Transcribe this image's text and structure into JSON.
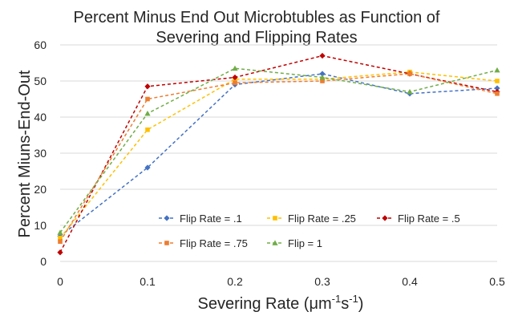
{
  "chart_data": {
    "type": "line",
    "title_lines": [
      "Percent Minus End Out Microbtubles as Function of",
      "Severing and Flipping Rates"
    ],
    "xlabel_prefix": "Severing Rate (",
    "xlabel_unit_mu": "μm",
    "xlabel_sup1": "-1",
    "xlabel_unit_s": "s",
    "xlabel_sup2": "-1",
    "xlabel_suffix": ")",
    "ylabel": "Percent Miuns-End-Out",
    "x": [
      0,
      0.1,
      0.2,
      0.3,
      0.4,
      0.5
    ],
    "x_tick_labels": [
      "0",
      "0.1",
      "0.2",
      "0.3",
      "0.4",
      "0.5"
    ],
    "y_ticks": [
      0,
      10,
      20,
      30,
      40,
      50,
      60
    ],
    "xlim": [
      0,
      0.5
    ],
    "ylim": [
      0,
      60
    ],
    "grid": "horizontal",
    "legend_position": "inside-bottom-right",
    "series": [
      {
        "name": "Flip Rate = .1",
        "color": "#4472c4",
        "marker": "diamond",
        "values": [
          7,
          26,
          49,
          52,
          46.5,
          48
        ]
      },
      {
        "name": "Flip Rate = .25",
        "color": "#ffc000",
        "marker": "square",
        "values": [
          6.5,
          36.5,
          50.5,
          50.5,
          52.5,
          50
        ]
      },
      {
        "name": "Flip Rate = .5",
        "color": "#c00000",
        "marker": "diamond",
        "values": [
          2.5,
          48.5,
          51,
          57,
          52,
          47
        ]
      },
      {
        "name": "Flip Rate = .75",
        "color": "#ed7d31",
        "marker": "square",
        "values": [
          5.5,
          45,
          49.5,
          50,
          52,
          46.5
        ]
      },
      {
        "name": "Flip = 1",
        "color": "#70ad47",
        "marker": "triangle",
        "values": [
          8,
          41,
          53.5,
          51,
          47,
          53
        ]
      }
    ]
  }
}
